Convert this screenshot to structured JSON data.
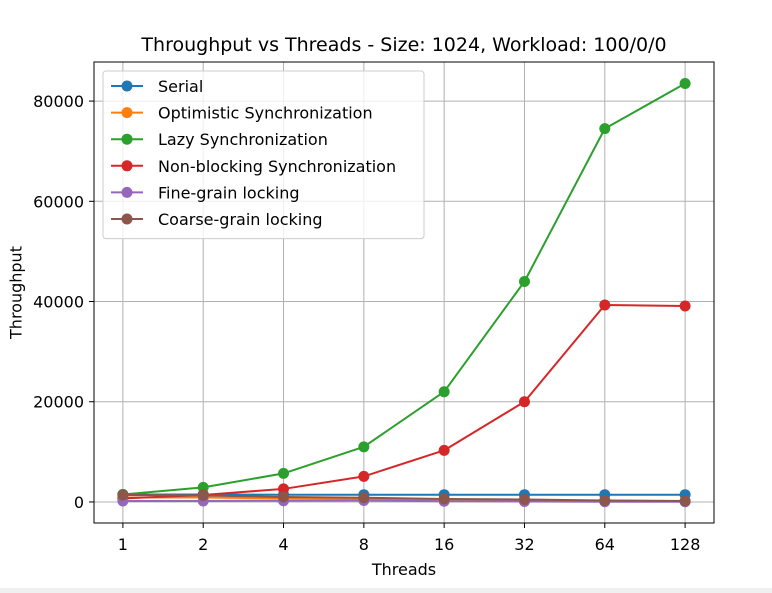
{
  "chart_data": {
    "type": "line",
    "title": "Throughput vs Threads - Size: 1024, Workload: 100/0/0",
    "xlabel": "Threads",
    "ylabel": "Throughput",
    "x": [
      1,
      2,
      4,
      8,
      16,
      32,
      64,
      128
    ],
    "x_scale": "log2",
    "x_tick_labels": [
      "1",
      "2",
      "4",
      "8",
      "16",
      "32",
      "64",
      "128"
    ],
    "ylim": [
      -4200,
      87800
    ],
    "y_ticks": [
      0,
      20000,
      40000,
      60000,
      80000
    ],
    "y_tick_labels": [
      "0",
      "20000",
      "40000",
      "60000",
      "80000"
    ],
    "grid": true,
    "legend_position": "top-left",
    "series": [
      {
        "name": "Serial",
        "color": "#1f77b4",
        "values": [
          1500,
          1500,
          1450,
          1450,
          1450,
          1450,
          1450,
          1450
        ]
      },
      {
        "name": "Optimistic Synchronization",
        "color": "#ff7f0e",
        "values": [
          900,
          900,
          700,
          600,
          300,
          250,
          200,
          150
        ]
      },
      {
        "name": "Lazy Synchronization",
        "color": "#2ca02c",
        "values": [
          1500,
          2900,
          5700,
          11000,
          22000,
          44000,
          74500,
          83500
        ]
      },
      {
        "name": "Non-blocking Synchronization",
        "color": "#d62728",
        "values": [
          700,
          1400,
          2600,
          5100,
          10300,
          20000,
          39300,
          39100
        ]
      },
      {
        "name": "Fine-grain locking",
        "color": "#9467bd",
        "values": [
          200,
          200,
          250,
          300,
          150,
          100,
          50,
          50
        ]
      },
      {
        "name": "Coarse-grain locking",
        "color": "#8c564b",
        "values": [
          1400,
          1300,
          1000,
          850,
          600,
          500,
          300,
          200
        ]
      }
    ]
  }
}
